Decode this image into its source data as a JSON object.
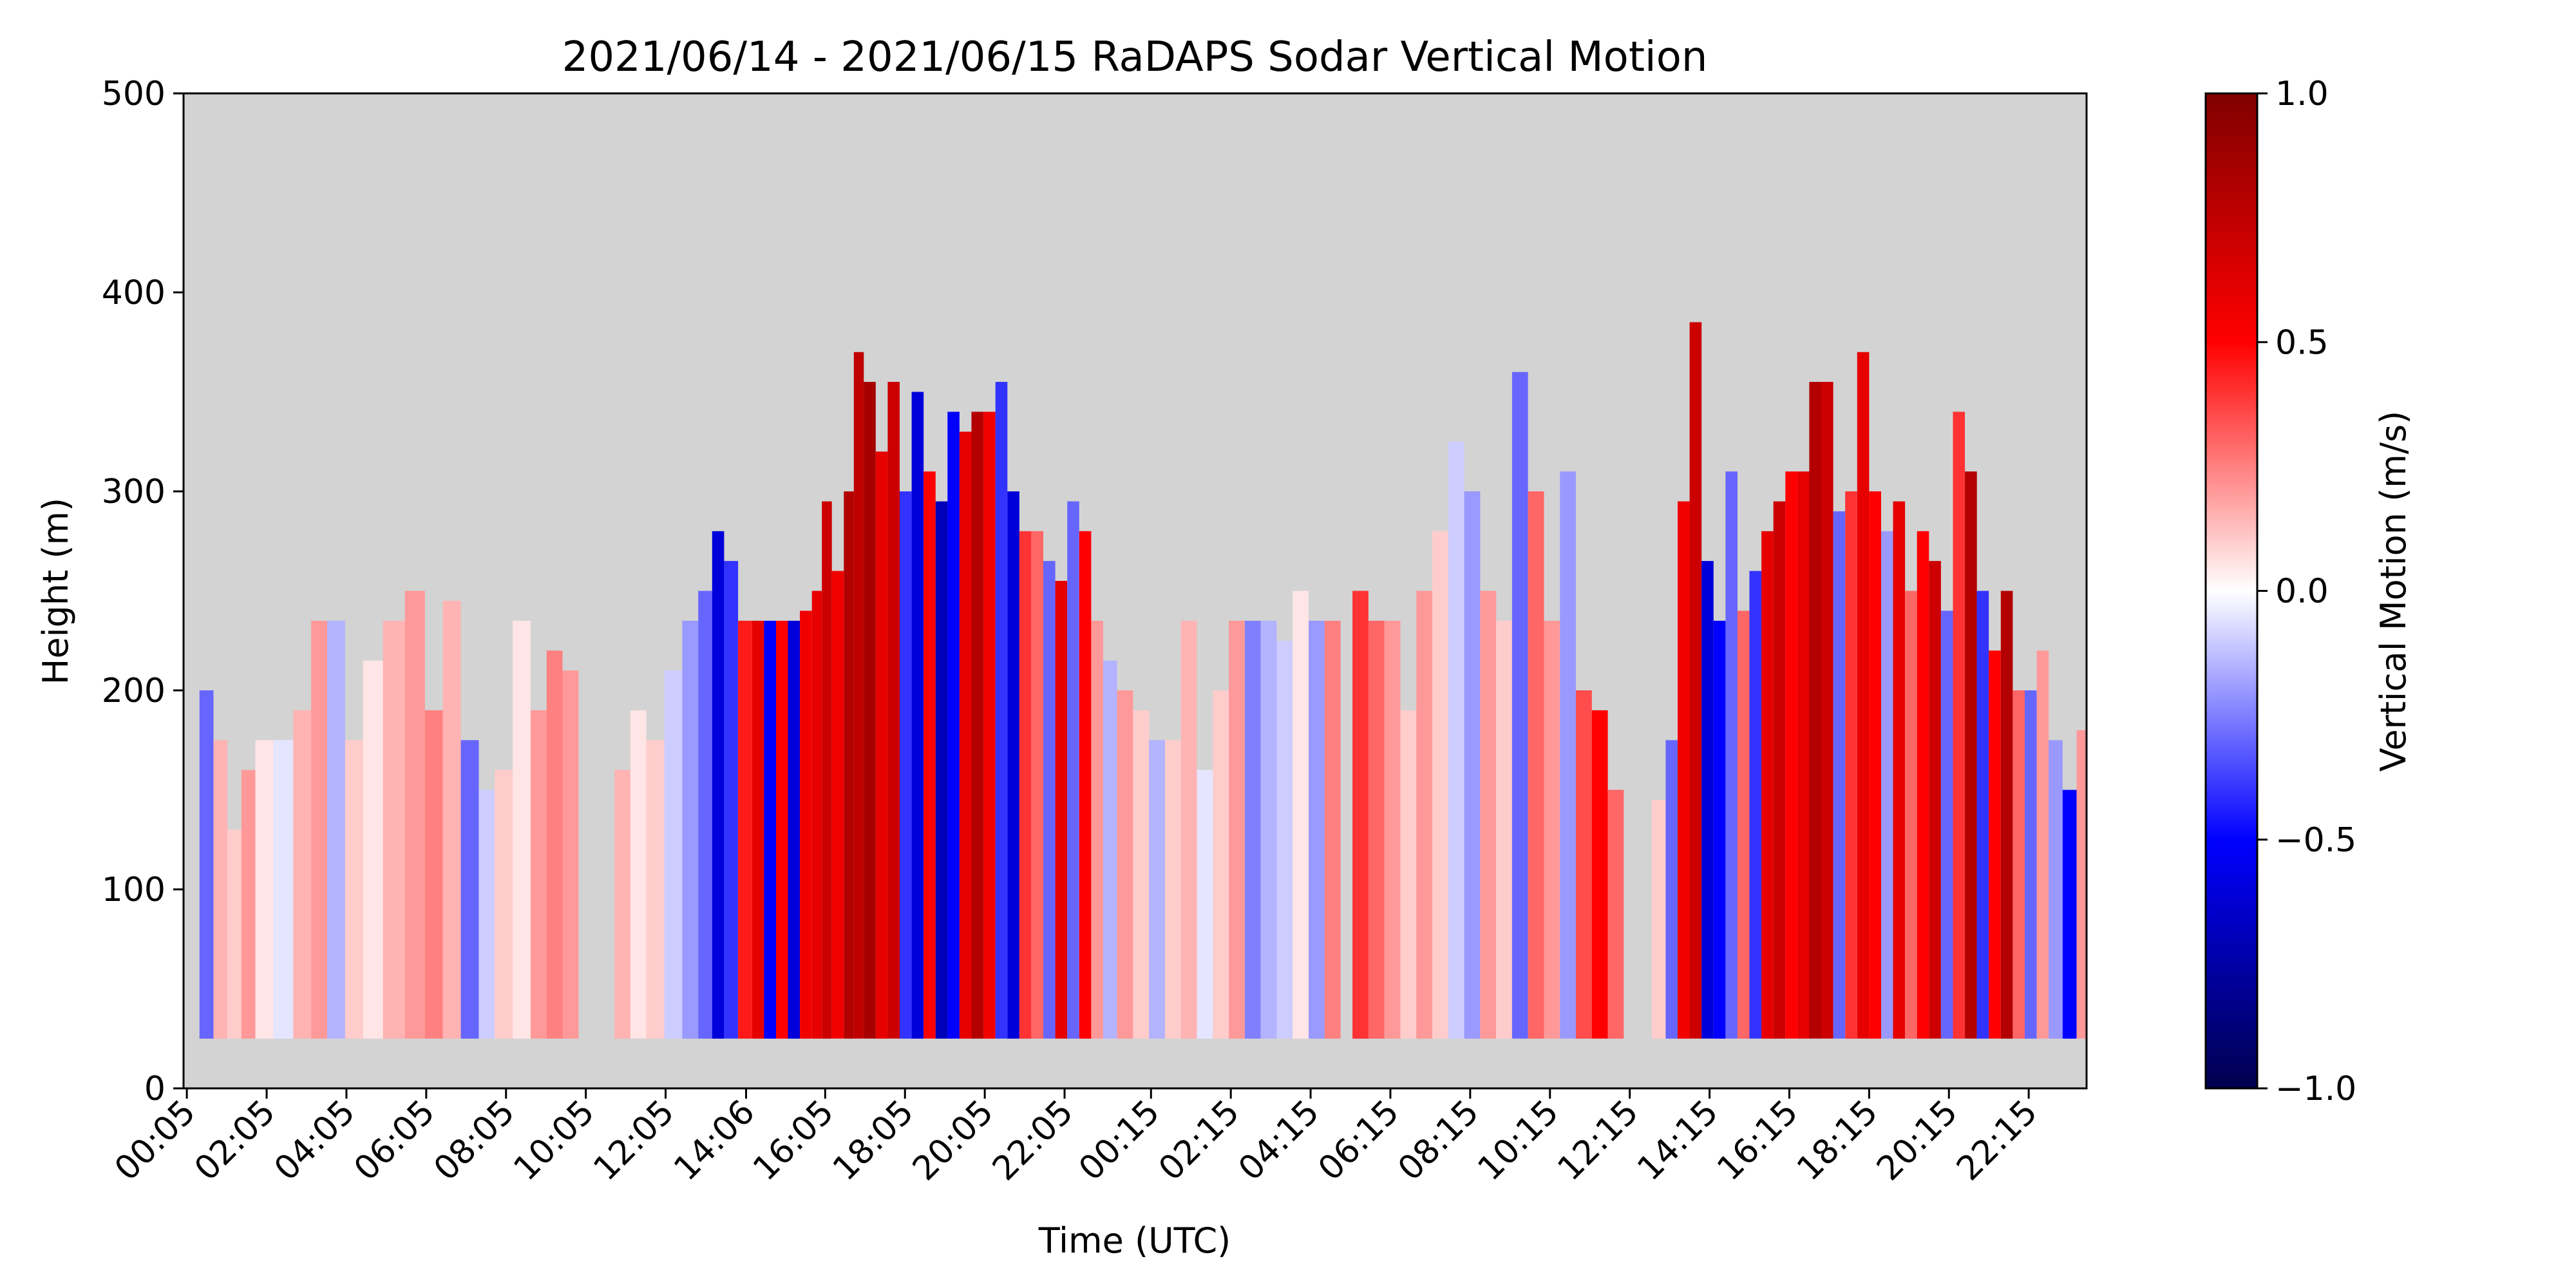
{
  "chart_data": {
    "type": "heatmap",
    "title": "2021/06/14 - 2021/06/15 RaDAPS Sodar Vertical Motion",
    "xlabel": "Time (UTC)",
    "ylabel": "Height (m)",
    "ylim": [
      0,
      500
    ],
    "y_ticks": [
      0,
      100,
      200,
      300,
      400,
      500
    ],
    "y_tick_labels": [
      "0",
      "100",
      "200",
      "300",
      "400",
      "500"
    ],
    "x_tick_labels": [
      "00:05",
      "02:05",
      "04:05",
      "06:05",
      "08:05",
      "10:05",
      "12:05",
      "14:06",
      "16:05",
      "18:05",
      "20:05",
      "22:05",
      "00:15",
      "02:15",
      "04:15",
      "06:15",
      "08:15",
      "10:15",
      "12:15",
      "14:15",
      "16:15",
      "18:15",
      "20:15",
      "22:15"
    ],
    "x_tick_hours": [
      0.083,
      2.083,
      4.083,
      6.083,
      8.083,
      10.083,
      12.083,
      14.1,
      16.083,
      18.083,
      20.083,
      22.083,
      24.25,
      26.25,
      28.25,
      30.25,
      32.25,
      34.25,
      36.25,
      38.25,
      40.25,
      42.25,
      44.25,
      46.25
    ],
    "xlim_hours": [
      0,
      47.7
    ],
    "background_color": "#d3d3d3",
    "min_height": 25,
    "colorbar": {
      "label": "Vertical Motion (m/s)",
      "colormap": "seismic",
      "range": [
        -1.0,
        1.0
      ],
      "ticks": [
        -1.0,
        -0.5,
        0.0,
        0.5,
        1.0
      ],
      "tick_labels": [
        "−1.0",
        "−0.5",
        "0.0",
        "0.5",
        "1.0"
      ],
      "colors": [
        "#00004d",
        "#0000ff",
        "#ffffff",
        "#ff0000",
        "#800000"
      ]
    },
    "columns": [
      {
        "hour": 0.6,
        "top": 200,
        "v": -0.3
      },
      {
        "hour": 0.9,
        "top": 175,
        "v": 0.15
      },
      {
        "hour": 1.3,
        "top": 130,
        "v": 0.1
      },
      {
        "hour": 1.6,
        "top": 160,
        "v": 0.2
      },
      {
        "hour": 2.0,
        "top": 175,
        "v": 0.05
      },
      {
        "hour": 2.5,
        "top": 175,
        "v": -0.05
      },
      {
        "hour": 3.0,
        "top": 190,
        "v": 0.15
      },
      {
        "hour": 3.4,
        "top": 235,
        "v": 0.2
      },
      {
        "hour": 3.8,
        "top": 235,
        "v": -0.15
      },
      {
        "hour": 4.3,
        "top": 175,
        "v": 0.1
      },
      {
        "hour": 4.7,
        "top": 215,
        "v": 0.05
      },
      {
        "hour": 5.3,
        "top": 235,
        "v": 0.15
      },
      {
        "hour": 5.8,
        "top": 250,
        "v": 0.2
      },
      {
        "hour": 6.3,
        "top": 190,
        "v": 0.25
      },
      {
        "hour": 6.7,
        "top": 245,
        "v": 0.15
      },
      {
        "hour": 7.2,
        "top": 175,
        "v": -0.3
      },
      {
        "hour": 7.6,
        "top": 150,
        "v": -0.1
      },
      {
        "hour": 8.0,
        "top": 160,
        "v": 0.1
      },
      {
        "hour": 8.5,
        "top": 235,
        "v": 0.05
      },
      {
        "hour": 8.9,
        "top": 190,
        "v": 0.2
      },
      {
        "hour": 9.3,
        "top": 220,
        "v": 0.25
      },
      {
        "hour": 9.7,
        "top": 210,
        "v": 0.2
      },
      {
        "hour": 11.0,
        "top": 160,
        "v": 0.15
      },
      {
        "hour": 11.4,
        "top": 190,
        "v": 0.05
      },
      {
        "hour": 11.8,
        "top": 175,
        "v": 0.1
      },
      {
        "hour": 12.3,
        "top": 210,
        "v": -0.1
      },
      {
        "hour": 12.7,
        "top": 235,
        "v": -0.2
      },
      {
        "hour": 13.1,
        "top": 250,
        "v": -0.3
      },
      {
        "hour": 13.4,
        "top": 280,
        "v": -0.6
      },
      {
        "hour": 13.7,
        "top": 265,
        "v": -0.4
      },
      {
        "hour": 14.1,
        "top": 235,
        "v": 0.45
      },
      {
        "hour": 14.4,
        "top": 235,
        "v": 0.6
      },
      {
        "hour": 14.7,
        "top": 235,
        "v": -0.5
      },
      {
        "hour": 15.0,
        "top": 235,
        "v": 0.5
      },
      {
        "hour": 15.3,
        "top": 235,
        "v": -0.6
      },
      {
        "hour": 15.6,
        "top": 240,
        "v": 0.55
      },
      {
        "hour": 15.9,
        "top": 250,
        "v": 0.6
      },
      {
        "hour": 16.1,
        "top": 295,
        "v": 0.7
      },
      {
        "hour": 16.4,
        "top": 260,
        "v": 0.55
      },
      {
        "hour": 16.7,
        "top": 300,
        "v": 0.8
      },
      {
        "hour": 16.9,
        "top": 370,
        "v": 0.75
      },
      {
        "hour": 17.2,
        "top": 355,
        "v": 0.85
      },
      {
        "hour": 17.5,
        "top": 320,
        "v": 0.6
      },
      {
        "hour": 17.8,
        "top": 355,
        "v": 0.7
      },
      {
        "hour": 18.1,
        "top": 300,
        "v": -0.4
      },
      {
        "hour": 18.4,
        "top": 350,
        "v": -0.6
      },
      {
        "hour": 18.7,
        "top": 310,
        "v": 0.5
      },
      {
        "hour": 19.0,
        "top": 295,
        "v": -0.7
      },
      {
        "hour": 19.3,
        "top": 340,
        "v": -0.5
      },
      {
        "hour": 19.6,
        "top": 330,
        "v": 0.6
      },
      {
        "hour": 19.9,
        "top": 340,
        "v": 0.8
      },
      {
        "hour": 20.2,
        "top": 340,
        "v": 0.55
      },
      {
        "hour": 20.5,
        "top": 355,
        "v": -0.4
      },
      {
        "hour": 20.8,
        "top": 300,
        "v": -0.6
      },
      {
        "hour": 21.1,
        "top": 280,
        "v": 0.4
      },
      {
        "hour": 21.4,
        "top": 280,
        "v": 0.3
      },
      {
        "hour": 21.7,
        "top": 265,
        "v": -0.3
      },
      {
        "hour": 22.0,
        "top": 255,
        "v": 0.6
      },
      {
        "hour": 22.3,
        "top": 295,
        "v": -0.3
      },
      {
        "hour": 22.6,
        "top": 280,
        "v": 0.5
      },
      {
        "hour": 22.9,
        "top": 235,
        "v": 0.2
      },
      {
        "hour": 23.2,
        "top": 215,
        "v": -0.15
      },
      {
        "hour": 23.6,
        "top": 200,
        "v": 0.2
      },
      {
        "hour": 24.0,
        "top": 190,
        "v": 0.1
      },
      {
        "hour": 24.4,
        "top": 175,
        "v": -0.15
      },
      {
        "hour": 24.8,
        "top": 175,
        "v": 0.1
      },
      {
        "hour": 25.2,
        "top": 235,
        "v": 0.15
      },
      {
        "hour": 25.6,
        "top": 160,
        "v": -0.05
      },
      {
        "hour": 26.0,
        "top": 200,
        "v": 0.1
      },
      {
        "hour": 26.4,
        "top": 235,
        "v": 0.2
      },
      {
        "hour": 26.8,
        "top": 235,
        "v": -0.25
      },
      {
        "hour": 27.2,
        "top": 235,
        "v": -0.15
      },
      {
        "hour": 27.6,
        "top": 225,
        "v": -0.1
      },
      {
        "hour": 28.0,
        "top": 250,
        "v": 0.05
      },
      {
        "hour": 28.4,
        "top": 235,
        "v": -0.2
      },
      {
        "hour": 28.8,
        "top": 235,
        "v": 0.25
      },
      {
        "hour": 29.5,
        "top": 250,
        "v": 0.4
      },
      {
        "hour": 29.9,
        "top": 235,
        "v": 0.3
      },
      {
        "hour": 30.3,
        "top": 235,
        "v": 0.2
      },
      {
        "hour": 30.7,
        "top": 190,
        "v": 0.1
      },
      {
        "hour": 31.1,
        "top": 250,
        "v": 0.2
      },
      {
        "hour": 31.5,
        "top": 280,
        "v": 0.1
      },
      {
        "hour": 31.9,
        "top": 325,
        "v": -0.1
      },
      {
        "hour": 32.3,
        "top": 300,
        "v": -0.2
      },
      {
        "hour": 32.7,
        "top": 250,
        "v": 0.2
      },
      {
        "hour": 33.1,
        "top": 235,
        "v": 0.1
      },
      {
        "hour": 33.5,
        "top": 360,
        "v": -0.3
      },
      {
        "hour": 33.9,
        "top": 300,
        "v": 0.3
      },
      {
        "hour": 34.3,
        "top": 235,
        "v": 0.2
      },
      {
        "hour": 34.7,
        "top": 310,
        "v": -0.2
      },
      {
        "hour": 35.1,
        "top": 200,
        "v": 0.35
      },
      {
        "hour": 35.5,
        "top": 190,
        "v": 0.5
      },
      {
        "hour": 35.9,
        "top": 150,
        "v": 0.3
      },
      {
        "hour": 37.0,
        "top": 145,
        "v": 0.1
      },
      {
        "hour": 37.3,
        "top": 175,
        "v": -0.3
      },
      {
        "hour": 37.6,
        "top": 295,
        "v": 0.55
      },
      {
        "hour": 37.9,
        "top": 385,
        "v": 0.7
      },
      {
        "hour": 38.2,
        "top": 265,
        "v": -0.6
      },
      {
        "hour": 38.5,
        "top": 235,
        "v": -0.5
      },
      {
        "hour": 38.8,
        "top": 310,
        "v": -0.3
      },
      {
        "hour": 39.1,
        "top": 240,
        "v": 0.3
      },
      {
        "hour": 39.4,
        "top": 260,
        "v": -0.4
      },
      {
        "hour": 39.7,
        "top": 280,
        "v": 0.6
      },
      {
        "hour": 40.0,
        "top": 295,
        "v": 0.7
      },
      {
        "hour": 40.3,
        "top": 310,
        "v": 0.5
      },
      {
        "hour": 40.6,
        "top": 310,
        "v": 0.6
      },
      {
        "hour": 40.9,
        "top": 355,
        "v": 0.8
      },
      {
        "hour": 41.2,
        "top": 355,
        "v": 0.7
      },
      {
        "hour": 41.5,
        "top": 290,
        "v": -0.3
      },
      {
        "hour": 41.8,
        "top": 300,
        "v": 0.4
      },
      {
        "hour": 42.1,
        "top": 370,
        "v": 0.6
      },
      {
        "hour": 42.4,
        "top": 300,
        "v": 0.5
      },
      {
        "hour": 42.7,
        "top": 280,
        "v": -0.2
      },
      {
        "hour": 43.0,
        "top": 295,
        "v": 0.6
      },
      {
        "hour": 43.3,
        "top": 250,
        "v": 0.3
      },
      {
        "hour": 43.6,
        "top": 280,
        "v": 0.5
      },
      {
        "hour": 43.9,
        "top": 265,
        "v": 0.7
      },
      {
        "hour": 44.2,
        "top": 240,
        "v": -0.3
      },
      {
        "hour": 44.5,
        "top": 340,
        "v": 0.4
      },
      {
        "hour": 44.8,
        "top": 310,
        "v": 0.8
      },
      {
        "hour": 45.1,
        "top": 250,
        "v": -0.4
      },
      {
        "hour": 45.4,
        "top": 220,
        "v": 0.5
      },
      {
        "hour": 45.7,
        "top": 250,
        "v": 0.8
      },
      {
        "hour": 46.0,
        "top": 200,
        "v": 0.3
      },
      {
        "hour": 46.3,
        "top": 200,
        "v": -0.3
      },
      {
        "hour": 46.6,
        "top": 220,
        "v": 0.2
      },
      {
        "hour": 46.9,
        "top": 175,
        "v": -0.2
      },
      {
        "hour": 47.3,
        "top": 150,
        "v": -0.5
      },
      {
        "hour": 47.6,
        "top": 180,
        "v": 0.2
      }
    ]
  }
}
